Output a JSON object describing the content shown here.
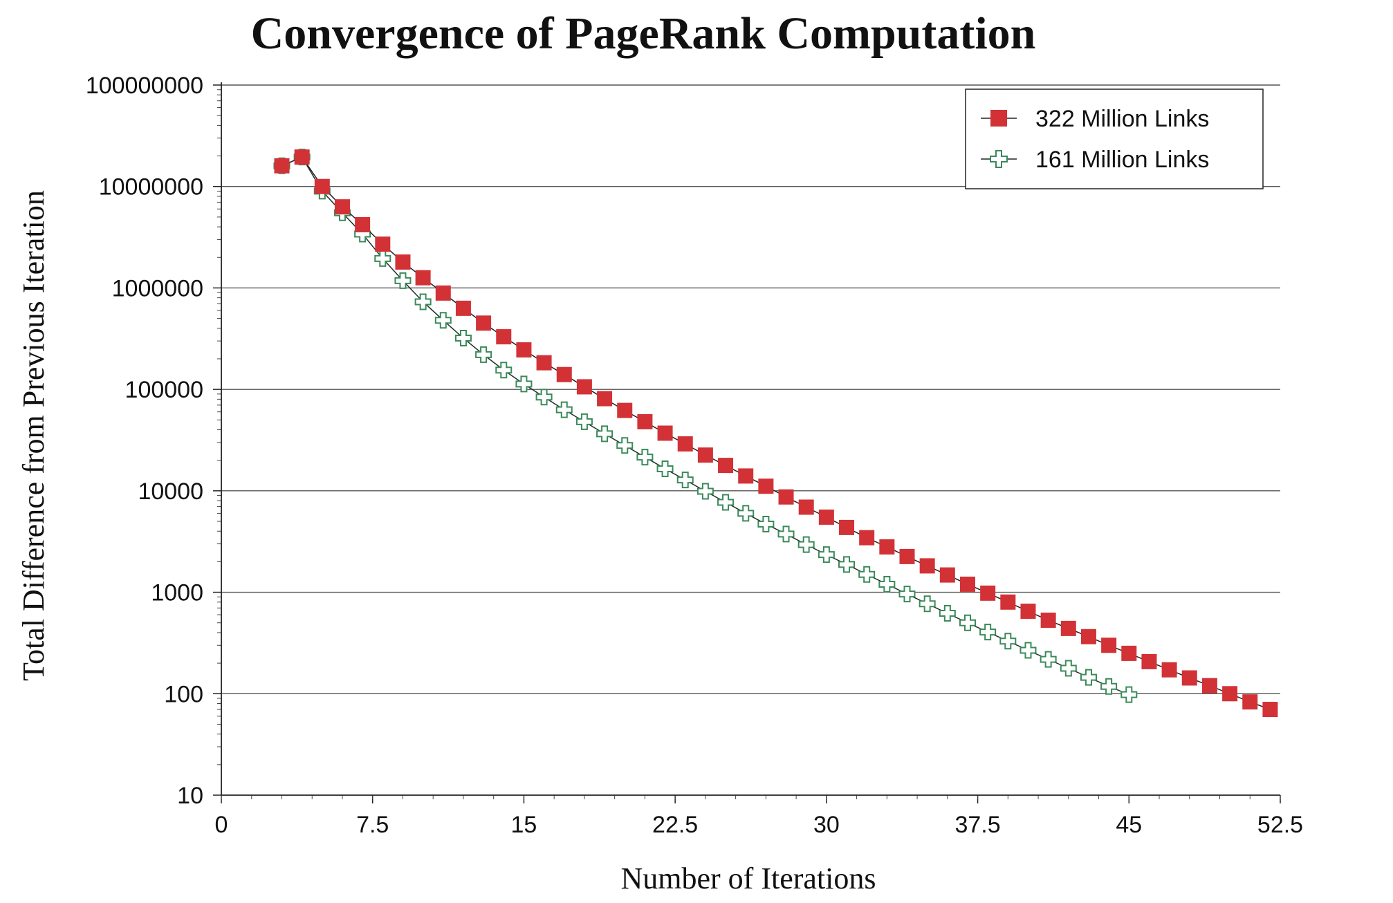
{
  "chart_data": {
    "type": "line",
    "title": "Convergence of PageRank Computation",
    "xlabel": "Number of Iterations",
    "ylabel": "Total Difference from Previous Iteration",
    "xlim": [
      0,
      52.5
    ],
    "ylim": [
      10,
      100000000
    ],
    "yscale": "log",
    "x_ticks": [
      "0",
      "7.5",
      "15",
      "22.5",
      "30",
      "37.5",
      "45",
      "52.5"
    ],
    "y_ticks": [
      "10",
      "100",
      "1000",
      "10000",
      "100000",
      "1000000",
      "10000000",
      "100000000"
    ],
    "grid": "horizontal",
    "legend_position": "top-right",
    "series": [
      {
        "name": "322 Million Links",
        "color": "#d23236",
        "marker": "filled-square",
        "x": [
          3,
          4,
          5,
          6,
          7,
          8,
          9,
          10,
          11,
          12,
          13,
          14,
          15,
          16,
          17,
          18,
          19,
          20,
          21,
          22,
          23,
          24,
          25,
          26,
          27,
          28,
          29,
          30,
          31,
          32,
          33,
          34,
          35,
          36,
          37,
          38,
          39,
          40,
          41,
          42,
          43,
          44,
          45,
          46,
          47,
          48,
          49,
          50,
          51,
          52
        ],
        "values": [
          16000000,
          19500000,
          10000000,
          6300000,
          4200000,
          2700000,
          1800000,
          1260000,
          890000,
          630000,
          450000,
          330000,
          245000,
          183000,
          140000,
          106000,
          81000,
          62000,
          48000,
          37000,
          29000,
          22500,
          17800,
          14000,
          11100,
          8700,
          6900,
          5500,
          4350,
          3450,
          2800,
          2250,
          1820,
          1480,
          1200,
          980,
          800,
          650,
          530,
          440,
          365,
          300,
          250,
          207,
          172,
          143,
          120,
          100,
          83,
          70
        ]
      },
      {
        "name": "161 Million Links",
        "color": "#3a8a5a",
        "marker": "open-cross",
        "x": [
          3,
          4,
          5,
          6,
          7,
          8,
          9,
          10,
          11,
          12,
          13,
          14,
          15,
          16,
          17,
          18,
          19,
          20,
          21,
          22,
          23,
          24,
          25,
          26,
          27,
          28,
          29,
          30,
          31,
          32,
          33,
          34,
          35,
          36,
          37,
          38,
          39,
          40,
          41,
          42,
          43,
          44,
          45
        ],
        "values": [
          16000000,
          19500000,
          9000000,
          5500000,
          3400000,
          1950000,
          1180000,
          730000,
          480000,
          320000,
          220000,
          155000,
          113000,
          84000,
          63000,
          48000,
          36500,
          28000,
          21500,
          16500,
          12800,
          9900,
          7700,
          6000,
          4700,
          3750,
          2950,
          2350,
          1880,
          1500,
          1200,
          960,
          770,
          620,
          500,
          405,
          330,
          268,
          218,
          178,
          145,
          118,
          98
        ]
      }
    ]
  }
}
